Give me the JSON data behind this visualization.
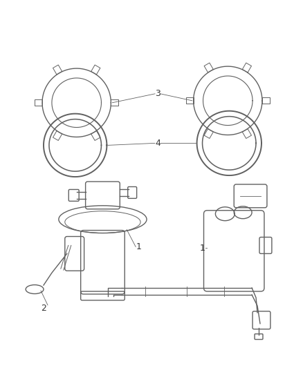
{
  "background_color": "#ffffff",
  "line_color": "#606060",
  "label_color": "#333333",
  "fig_width": 4.38,
  "fig_height": 5.33,
  "dpi": 100
}
